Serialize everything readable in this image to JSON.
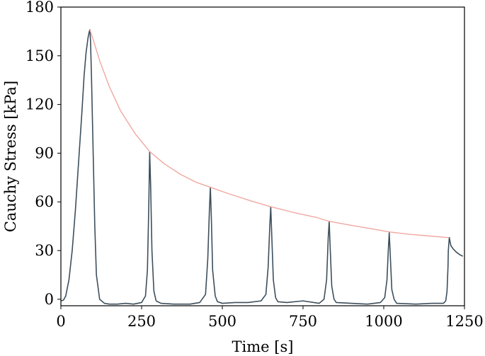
{
  "chart_data": {
    "type": "line",
    "title": "",
    "xlabel": "Time [s]",
    "ylabel": "Cauchy Stress [kPa]",
    "xlim": [
      0,
      1250
    ],
    "ylim": [
      -4,
      180
    ],
    "xticks": [
      0,
      250,
      500,
      750,
      1000,
      1250
    ],
    "yticks": [
      0,
      30,
      60,
      90,
      120,
      150,
      180
    ],
    "grid": false,
    "legend": "none",
    "series": [
      {
        "color": "#3d4f5c",
        "x": [
          0,
          8,
          15,
          25,
          35,
          45,
          55,
          65,
          72,
          78,
          84,
          88,
          90,
          92,
          95,
          100,
          105,
          110,
          120,
          135,
          150,
          175,
          200,
          225,
          250,
          262,
          268,
          272,
          275,
          278,
          282,
          288,
          295,
          310,
          350,
          400,
          430,
          448,
          455,
          460,
          463,
          466,
          470,
          478,
          485,
          500,
          540,
          580,
          620,
          635,
          642,
          647,
          650,
          653,
          658,
          665,
          672,
          700,
          750,
          800,
          815,
          823,
          828,
          831,
          834,
          839,
          846,
          853,
          900,
          950,
          990,
          1003,
          1010,
          1014,
          1017,
          1020,
          1025,
          1032,
          1040,
          1100,
          1150,
          1185,
          1192,
          1196,
          1199,
          1200,
          1203,
          1208,
          1215,
          1225,
          1235,
          1245
        ],
        "y": [
          -1,
          -0.5,
          2,
          12,
          30,
          55,
          85,
          115,
          138,
          152,
          161,
          165,
          166,
          158,
          135,
          90,
          45,
          15,
          0,
          -2.5,
          -3,
          -3,
          -2.5,
          -3,
          -2,
          2,
          18,
          55,
          91,
          70,
          30,
          5,
          -1,
          -2.5,
          -3,
          -3,
          -2,
          3,
          25,
          55,
          69,
          50,
          18,
          2,
          -1.5,
          -2.5,
          -2,
          -2,
          -1,
          3,
          20,
          45,
          57,
          40,
          12,
          1,
          -1.5,
          -2,
          -1,
          -2.5,
          0,
          12,
          38,
          48,
          32,
          8,
          0,
          -2,
          -2.5,
          -3,
          -2,
          1,
          12,
          30,
          41,
          28,
          6,
          0,
          -2.5,
          -3,
          -2.5,
          -2.5,
          -1,
          5,
          20,
          30,
          38,
          33,
          31,
          29,
          27.5,
          26.5
        ]
      },
      {
        "color": "#f0a8a0",
        "x": [
          90,
          100,
          120,
          150,
          185,
          230,
          275,
          320,
          370,
          420,
          463,
          520,
          590,
          650,
          720,
          790,
          831,
          900,
          960,
          1017,
          1080,
          1140,
          1200
        ],
        "y": [
          166,
          160,
          147,
          131,
          116,
          102,
          91,
          83.5,
          77,
          72,
          69,
          65,
          60.5,
          57,
          53.5,
          50.5,
          48,
          45.5,
          43.5,
          41.5,
          40,
          39,
          38
        ]
      }
    ]
  }
}
